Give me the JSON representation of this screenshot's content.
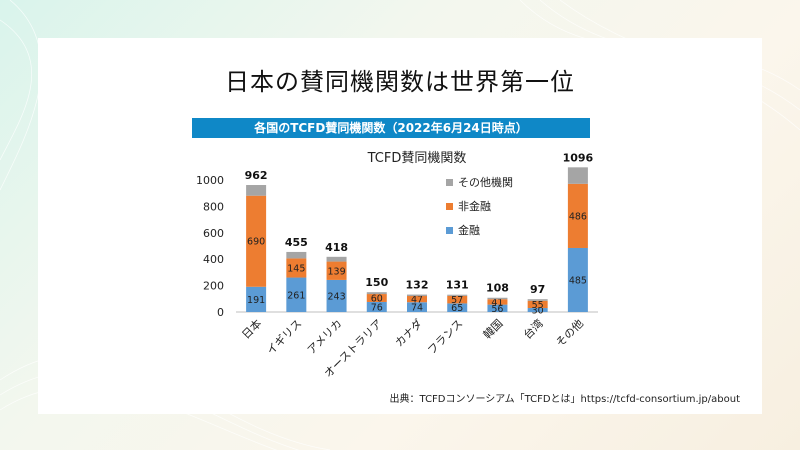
{
  "slide": {
    "title": "日本の賛同機関数は世界第一位",
    "banner": "各国のTCFD賛同機関数（2022年6月24日時点）",
    "source": "出典：TCFDコンソーシアム「TCFDとは」https://tcfd-consortium.jp/about"
  },
  "colors": {
    "finance": "#5b9bd5",
    "non_finance": "#ed7d31",
    "other": "#a5a5a5",
    "banner": "#0f88c7"
  },
  "chart_data": {
    "type": "bar",
    "stacked": true,
    "title": "TCFD賛同機関数",
    "xlabel": "",
    "ylabel": "",
    "ylim": [
      0,
      1000
    ],
    "yticks": [
      "0",
      "200",
      "400",
      "600",
      "800",
      "1000"
    ],
    "categories": [
      "日本",
      "イギリス",
      "アメリカ",
      "オーストラリア",
      "カナダ",
      "フランス",
      "韓国",
      "台湾",
      "その他"
    ],
    "series": [
      {
        "name": "金融",
        "values": [
          191,
          261,
          243,
          76,
          74,
          65,
          56,
          30,
          485
        ]
      },
      {
        "name": "非金融",
        "values": [
          690,
          145,
          139,
          60,
          47,
          57,
          41,
          55,
          486
        ]
      },
      {
        "name": "その他機関",
        "values": [
          81,
          49,
          36,
          14,
          11,
          9,
          11,
          12,
          125
        ]
      }
    ],
    "totals": [
      962,
      455,
      418,
      150,
      132,
      131,
      108,
      97,
      1096
    ],
    "legend_position": "top-right",
    "grid": false
  }
}
